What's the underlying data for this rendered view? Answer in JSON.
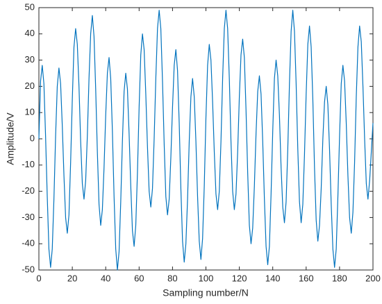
{
  "chart_data": {
    "type": "line",
    "x_label": "Sampling number/N",
    "y_label": "Amplitude/V",
    "color": "#0072bd",
    "xlim": [
      0,
      200
    ],
    "xticks": [
      0,
      20,
      40,
      60,
      80,
      100,
      120,
      140,
      160,
      180,
      200
    ],
    "ylim": [
      -50,
      50
    ],
    "yticks": [
      -50,
      -40,
      -30,
      -20,
      -10,
      0,
      10,
      20,
      30,
      40,
      50
    ],
    "grid": false,
    "x": [
      0,
      1,
      2,
      3,
      4,
      5,
      6,
      7,
      8,
      9,
      10,
      11,
      12,
      13,
      14,
      15,
      16,
      17,
      18,
      19,
      20,
      21,
      22,
      23,
      24,
      25,
      26,
      27,
      28,
      29,
      30,
      31,
      32,
      33,
      34,
      35,
      36,
      37,
      38,
      39,
      40,
      41,
      42,
      43,
      44,
      45,
      46,
      47,
      48,
      49,
      50,
      51,
      52,
      53,
      54,
      55,
      56,
      57,
      58,
      59,
      60,
      61,
      62,
      63,
      64,
      65,
      66,
      67,
      68,
      69,
      70,
      71,
      72,
      73,
      74,
      75,
      76,
      77,
      78,
      79,
      80,
      81,
      82,
      83,
      84,
      85,
      86,
      87,
      88,
      89,
      90,
      91,
      92,
      93,
      94,
      95,
      96,
      97,
      98,
      99,
      100,
      101,
      102,
      103,
      104,
      105,
      106,
      107,
      108,
      109,
      110,
      111,
      112,
      113,
      114,
      115,
      116,
      117,
      118,
      119,
      120,
      121,
      122,
      123,
      124,
      125,
      126,
      127,
      128,
      129,
      130,
      131,
      132,
      133,
      134,
      135,
      136,
      137,
      138,
      139,
      140,
      141,
      142,
      143,
      144,
      145,
      146,
      147,
      148,
      149,
      150,
      151,
      152,
      153,
      154,
      155,
      156,
      157,
      158,
      159,
      160,
      161,
      162,
      163,
      164,
      165,
      166,
      167,
      168,
      169,
      170,
      171,
      172,
      173,
      174,
      175,
      176,
      177,
      178,
      179,
      180,
      181,
      182,
      183,
      184,
      185,
      186,
      187,
      188,
      189,
      190,
      191,
      192,
      193,
      194,
      195,
      196,
      197,
      198,
      199,
      200
    ],
    "values": [
      0,
      22,
      28,
      21,
      1,
      -22,
      -42,
      -49,
      -42,
      -23,
      1,
      20,
      27,
      21,
      5,
      -14,
      -30,
      -36,
      -29,
      -9,
      15,
      35,
      42,
      36,
      20,
      -1,
      -17,
      -23,
      -16,
      1,
      23,
      40,
      47,
      39,
      19,
      -5,
      -25,
      -33,
      -27,
      -11,
      9,
      25,
      31,
      23,
      3,
      -22,
      -42,
      -50,
      -43,
      -24,
      -1,
      18,
      25,
      19,
      2,
      -18,
      -35,
      -41,
      -33,
      -13,
      12,
      32,
      40,
      34,
      17,
      -3,
      -20,
      -26,
      -19,
      0,
      23,
      42,
      49,
      42,
      22,
      -2,
      -22,
      -29,
      -23,
      -7,
      12,
      28,
      34,
      26,
      6,
      -19,
      -39,
      -47,
      -40,
      -23,
      -1,
      16,
      23,
      16,
      -1,
      -22,
      -39,
      -46,
      -38,
      -18,
      8,
      28,
      36,
      30,
      14,
      -5,
      -21,
      -27,
      -20,
      -1,
      23,
      42,
      49,
      42,
      23,
      -1,
      -20,
      -27,
      -21,
      -5,
      16,
      32,
      38,
      31,
      11,
      -13,
      -33,
      -40,
      -34,
      -18,
      2,
      18,
      24,
      17,
      -1,
      -23,
      -41,
      -48,
      -41,
      -21,
      3,
      23,
      30,
      24,
      9,
      -11,
      -26,
      -32,
      -24,
      -4,
      21,
      41,
      49,
      41,
      21,
      -4,
      -24,
      -32,
      -25,
      -6,
      17,
      36,
      43,
      35,
      15,
      -11,
      -31,
      -39,
      -33,
      -19,
      0,
      14,
      20,
      13,
      -4,
      -25,
      -42,
      -49,
      -42,
      -22,
      1,
      21,
      28,
      22,
      6,
      -14,
      -30,
      -36,
      -28,
      -9,
      16,
      35,
      43,
      37,
      20,
      0,
      -17,
      -23,
      -16,
      -5,
      6
    ]
  }
}
